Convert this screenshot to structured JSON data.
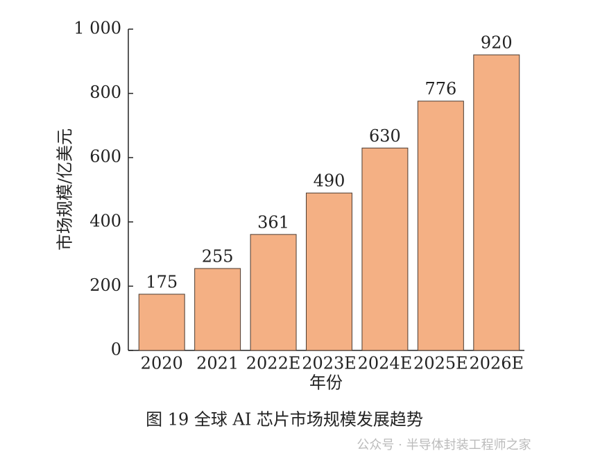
{
  "chart_data": {
    "type": "bar",
    "categories": [
      "2020",
      "2021",
      "2022E",
      "2023E",
      "2024E",
      "2025E",
      "2026E"
    ],
    "values": [
      175,
      255,
      361,
      490,
      630,
      776,
      920
    ],
    "color": "#f4b084",
    "ylim": [
      0,
      1000
    ],
    "yticks": [
      0,
      200,
      400,
      600,
      800,
      {
        "value": 1000,
        "label": "1 000"
      }
    ],
    "xlabel": "年份",
    "ylabel": "市场规模/亿美元",
    "caption": "图 19  全球 AI 芯片市场规模发展趋势",
    "watermark": "公众号 · 半导体封装工程师之家"
  }
}
